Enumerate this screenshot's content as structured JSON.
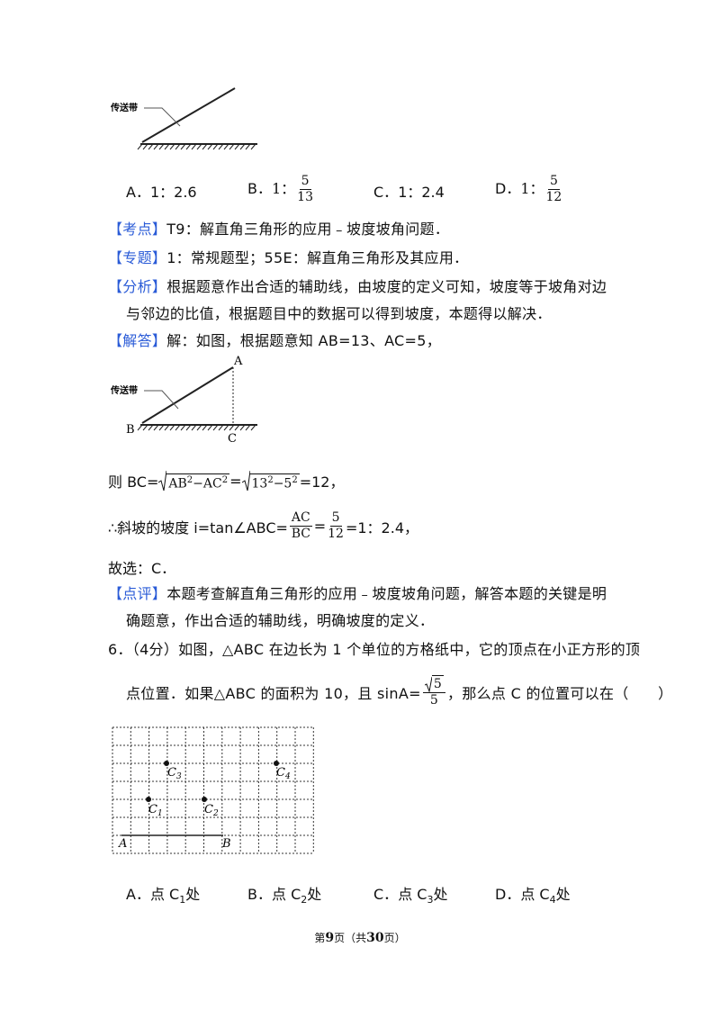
{
  "figure1": {
    "label": "传送带"
  },
  "q5_options": [
    {
      "letter": "A．",
      "text": "1：2.6"
    },
    {
      "letter": "B．",
      "text": "1：",
      "numerator": "5",
      "denominator": "13"
    },
    {
      "letter": "C．",
      "text": "1：2.4"
    },
    {
      "letter": "D．",
      "text": "1：",
      "numerator": "5",
      "denominator": "12"
    }
  ],
  "kaodian": {
    "tag": "【考点】",
    "text": "T9：解直角三角形的应用﹣坡度坡角问题．"
  },
  "zhuanti": {
    "tag": "【专题】",
    "text": "1：常规题型；55E：解直角三角形及其应用．"
  },
  "fenxi": {
    "tag": "【分析】",
    "text": "根据题意作出合适的辅助线，由坡度的定义可知，坡度等于坡角对边与邻边的比值，根据题目中的数据可以得到坡度，本题得以解决．"
  },
  "jieda": {
    "tag": "【解答】",
    "text": "解：如图，根据题意知 AB=13、AC=5，"
  },
  "figure2": {
    "label": "传送带",
    "A": "A",
    "B": "B",
    "C": "C"
  },
  "bc_line": {
    "lead": "则 BC=",
    "r1": [
      "AB",
      "2",
      "−AC",
      "2"
    ],
    "eq": "=",
    "r2": [
      "13",
      "2",
      "−5",
      "2"
    ],
    "tail": "=12，"
  },
  "slope_line": {
    "lead": "∴斜坡的坡度 i=tan∠ABC=",
    "f1": [
      "AC",
      "BC"
    ],
    "eq": "=",
    "f2": [
      "5",
      "12"
    ],
    "tail": "=1：2.4，"
  },
  "choice": "故选：C．",
  "dianping": {
    "tag": "【点评】",
    "text": "本题考查解直角三角形的应用﹣坡度坡角问题，解答本题的关键是明确题意，作出合适的辅助线，明确坡度的定义．"
  },
  "q6": {
    "line1": "6．（4分）如图，△ABC 在边长为 1 个单位的方格纸中，它的顶点在小正方形的顶",
    "line2_lead": "点位置．如果△ABC 的面积为 10，且 sinA=",
    "rad": "5",
    "den": "5",
    "line2_tail": "，那么点 C 的位置可以在（　　）"
  },
  "grid_labels": {
    "C1": [
      "C",
      "1"
    ],
    "C2": [
      "C",
      "2"
    ],
    "C3": [
      "C",
      "3"
    ],
    "C4": [
      "C",
      "4"
    ],
    "A": "A",
    "B": "B"
  },
  "q6_options": [
    {
      "letter": "A．",
      "pre": "点 C",
      "sub": "1",
      "post": "处"
    },
    {
      "letter": "B．",
      "pre": "点 C",
      "sub": "2",
      "post": "处"
    },
    {
      "letter": "C．",
      "pre": "点 C",
      "sub": "3",
      "post": "处"
    },
    {
      "letter": "D．",
      "pre": "点 C",
      "sub": "4",
      "post": "处"
    }
  ],
  "footer": {
    "a": "第",
    "page": "9",
    "b": "页（共",
    "total": "30",
    "c": "页）"
  }
}
